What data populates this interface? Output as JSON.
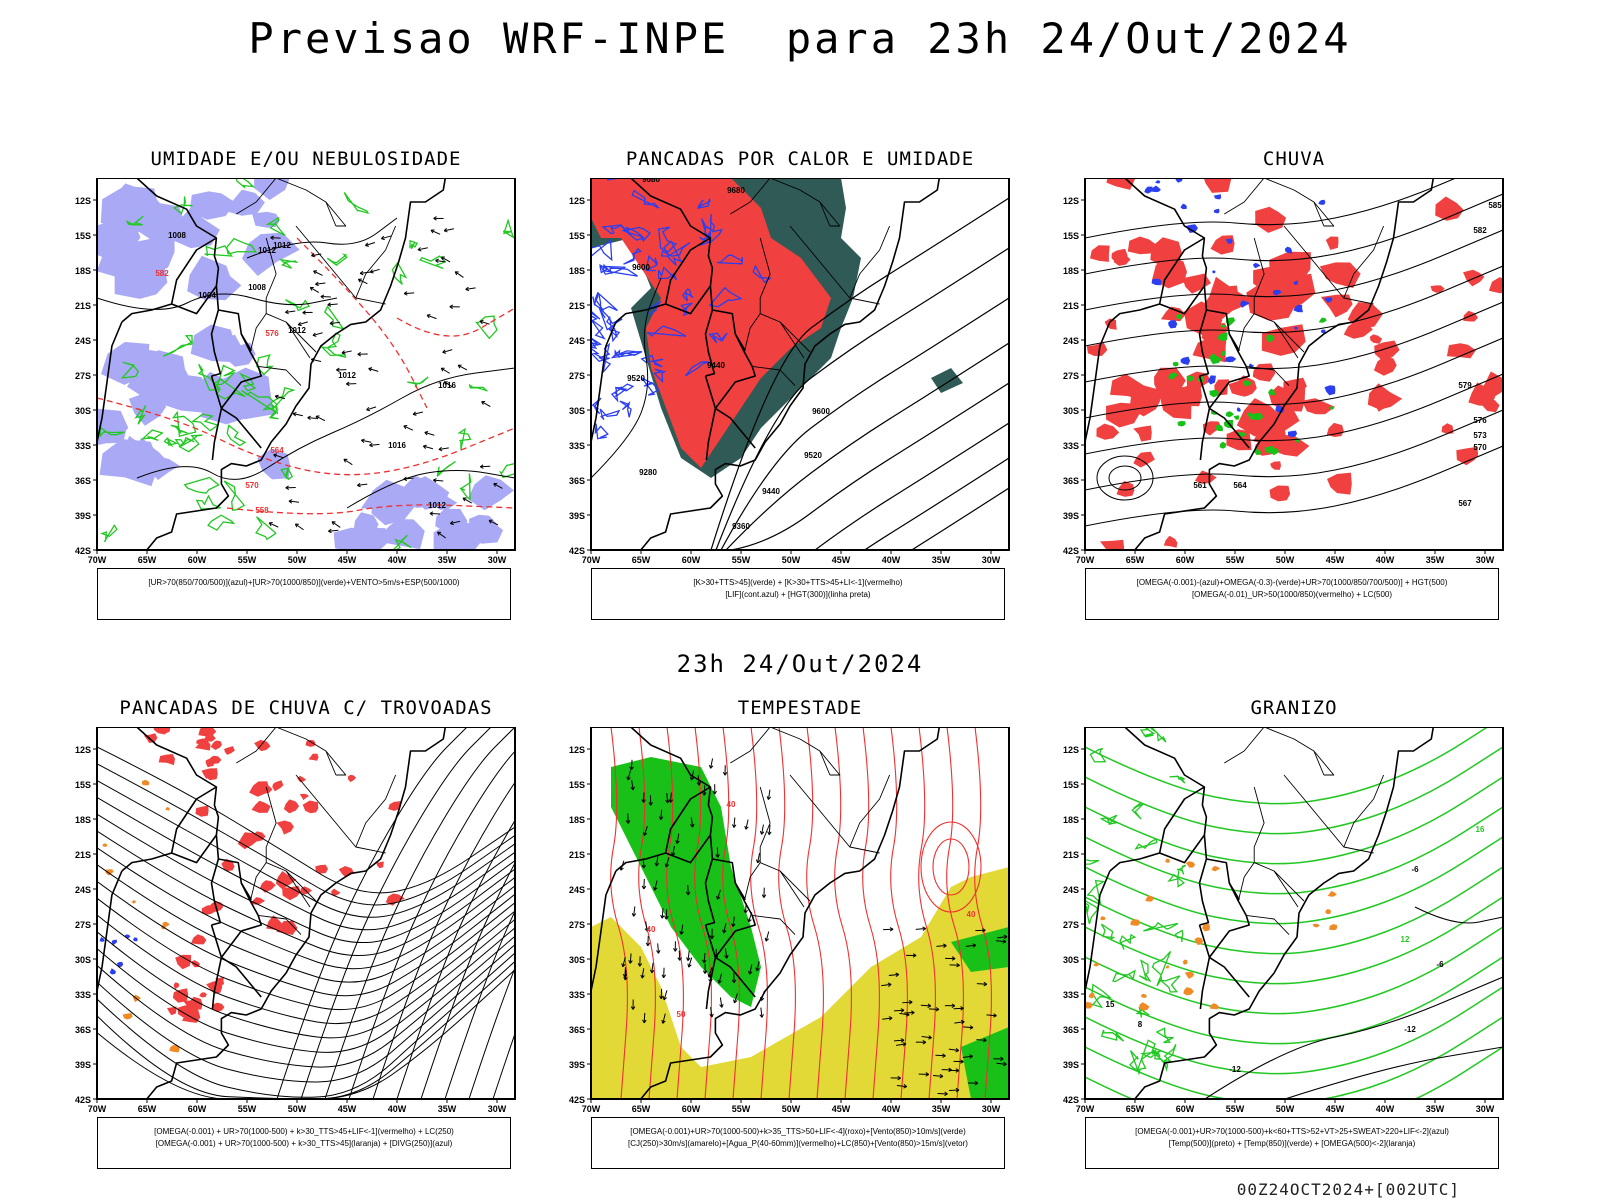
{
  "title": "Previsao WRF-INPE  para 23h 24/Out/2024",
  "mid_title": "23h 24/Out/2024",
  "footer": "00Z24OCT2024+[002UTC]",
  "lat_labels": [
    "12S",
    "15S",
    "18S",
    "21S",
    "24S",
    "27S",
    "30S",
    "33S",
    "36S",
    "39S",
    "42S"
  ],
  "lon_labels": [
    "70W",
    "65W",
    "60W",
    "55W",
    "50W",
    "45W",
    "40W",
    "35W",
    "30W"
  ],
  "panels": [
    {
      "title": "UMIDADE E/OU NEBULOSIDADE",
      "legend": [
        "[UR>70(850/700/500)](azul)+[UR>70(1000/850)](verde)+VENTO>5m/s+ESP(500/1000)"
      ],
      "contour_labels": [
        "1008",
        "1012",
        "1012",
        "1004",
        "1008",
        "1012",
        "1016",
        "1012",
        "1016",
        "1012",
        "576",
        "582",
        "570",
        "564",
        "558"
      ]
    },
    {
      "title": "PANCADAS POR CALOR E UMIDADE",
      "legend": [
        "[K>30+TTS>45](verde) + [K>30+TTS>45+LI<-1](vermelho)",
        "[LIF](cont.azul) + [HGT(300)](linha preta)"
      ],
      "contour_labels": [
        "9680",
        "9680",
        "9600",
        "9520",
        "9440",
        "9360",
        "9600",
        "9520",
        "9440",
        "9280"
      ]
    },
    {
      "title": "CHUVA",
      "legend": [
        "[OMEGA(-0.001)-(azul)+OMEGA(-0.3)-(verde)+UR>70(1000/850/700/500)] + HGT(500)",
        "[OMEGA(-0.01)_UR>50(1000/850)(vermelho) + LC(500)"
      ],
      "contour_labels": [
        "585",
        "582",
        "579",
        "576",
        "573",
        "570",
        "567",
        "564",
        "561"
      ]
    },
    {
      "title": "PANCADAS DE CHUVA C/ TROVOADAS",
      "legend": [
        "[OMEGA(-0.001) + UR>70(1000-500) + k>30_TTS>45+LIF<-1](vermelho) + LC(250)",
        "[OMEGA(-0.001) + UR>70(1000-500) + k>30_TTS>45](laranja) + [DIVG(250)](azul)"
      ],
      "contour_labels": []
    },
    {
      "title": "TEMPESTADE",
      "legend": [
        "[OMEGA(-0.001)+UR>70(1000-500)+k>35_TTS>50+LIF<-4](roxo)+[Vento(850)>10m/s](verde)",
        "[CJ(250)>30m/s](amarelo)+[Agua_P(40-60mm)](vermelho)+LC(850)+[Vento(850)>15m/s](vetor)"
      ],
      "contour_labels": [
        "40",
        "50",
        "40",
        "40"
      ]
    },
    {
      "title": "GRANIZO",
      "legend": [
        "[OMEGA(-0.001)+UR>70(1000-500)+k<60+TTS>52+VT>25+SWEAT>220+LIF<-2](azul)",
        "[Temp(500)](preto) + [Temp(850)](verde) + [OMEGA(500)<-2](laranja)"
      ],
      "contour_labels": [
        "-6",
        "-12",
        "-12",
        "-6",
        "16",
        "12",
        "15",
        "8"
      ]
    }
  ],
  "colors": {
    "blue_fill": "#a9a9f5",
    "green_line": "#22c822",
    "red_fill": "#f04040",
    "dark_teal": "#2f5a55",
    "yellow": "#e3d936",
    "orange": "#f08a24",
    "blue_line": "#2b3ff0",
    "red_line": "#f03030",
    "green_fill": "#18c018"
  }
}
